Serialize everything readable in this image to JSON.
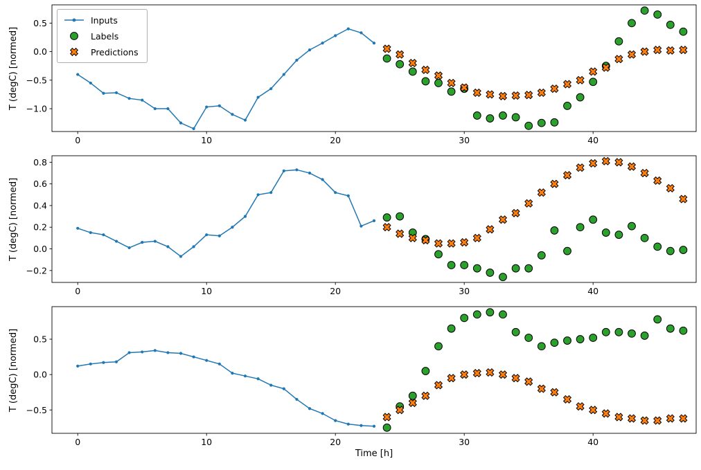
{
  "figure": {
    "background": "#ffffff",
    "xlabel": "Time [h]",
    "ylabel": "T (degC) [normed]"
  },
  "legend": {
    "position": "upper-left",
    "items": [
      {
        "label": "Inputs",
        "marker": "line-dot",
        "color": "#1f77b4"
      },
      {
        "label": "Labels",
        "marker": "circle",
        "color": "#2ca02c"
      },
      {
        "label": "Predictions",
        "marker": "x",
        "color": "#ff7f0e"
      }
    ]
  },
  "chart_data": [
    {
      "type": "line",
      "title": "",
      "xlabel": "",
      "ylabel": "T (degC) [normed]",
      "xlim": [
        -2,
        48
      ],
      "ylim": [
        -1.4,
        0.82
      ],
      "xticks": [
        0,
        10,
        20,
        30,
        40
      ],
      "yticks": [
        0.5,
        0.0,
        -0.5,
        -1.0
      ],
      "grid": false,
      "series": [
        {
          "name": "Inputs",
          "marker": "line-dot",
          "color": "#1f77b4",
          "x": [
            0,
            1,
            2,
            3,
            4,
            5,
            6,
            7,
            8,
            9,
            10,
            11,
            12,
            13,
            14,
            15,
            16,
            17,
            18,
            19,
            20,
            21,
            22,
            23
          ],
          "values": [
            -0.4,
            -0.55,
            -0.73,
            -0.72,
            -0.82,
            -0.85,
            -1.0,
            -1.0,
            -1.25,
            -1.35,
            -0.97,
            -0.95,
            -1.1,
            -1.2,
            -0.8,
            -0.65,
            -0.4,
            -0.15,
            0.03,
            0.15,
            0.28,
            0.4,
            0.33,
            0.15
          ]
        },
        {
          "name": "Labels",
          "marker": "circle",
          "color": "#2ca02c",
          "x": [
            24,
            25,
            26,
            27,
            28,
            29,
            30,
            31,
            32,
            33,
            34,
            35,
            36,
            37,
            38,
            39,
            40,
            41,
            42,
            43,
            44,
            45,
            46,
            47
          ],
          "values": [
            -0.12,
            -0.22,
            -0.35,
            -0.52,
            -0.55,
            -0.7,
            -0.65,
            -1.12,
            -1.17,
            -1.12,
            -1.15,
            -1.3,
            -1.25,
            -1.24,
            -0.95,
            -0.8,
            -0.53,
            -0.25,
            0.18,
            0.5,
            0.72,
            0.65,
            0.47,
            0.35
          ]
        },
        {
          "name": "Predictions",
          "marker": "x",
          "color": "#ff7f0e",
          "x": [
            24,
            25,
            26,
            27,
            28,
            29,
            30,
            31,
            32,
            33,
            34,
            35,
            36,
            37,
            38,
            39,
            40,
            41,
            42,
            43,
            44,
            45,
            46,
            47
          ],
          "values": [
            0.05,
            -0.05,
            -0.2,
            -0.32,
            -0.42,
            -0.55,
            -0.63,
            -0.72,
            -0.75,
            -0.78,
            -0.77,
            -0.76,
            -0.72,
            -0.65,
            -0.57,
            -0.5,
            -0.35,
            -0.28,
            -0.13,
            -0.05,
            0.0,
            0.03,
            0.02,
            0.03
          ]
        }
      ]
    },
    {
      "type": "line",
      "title": "",
      "xlabel": "",
      "ylabel": "T (degC) [normed]",
      "xlim": [
        -2,
        48
      ],
      "ylim": [
        -0.31,
        0.86
      ],
      "xticks": [
        0,
        10,
        20,
        30,
        40
      ],
      "yticks": [
        0.8,
        0.6,
        0.4,
        0.2,
        0.0,
        -0.2
      ],
      "grid": false,
      "series": [
        {
          "name": "Inputs",
          "marker": "line-dot",
          "color": "#1f77b4",
          "x": [
            0,
            1,
            2,
            3,
            4,
            5,
            6,
            7,
            8,
            9,
            10,
            11,
            12,
            13,
            14,
            15,
            16,
            17,
            18,
            19,
            20,
            21,
            22,
            23
          ],
          "values": [
            0.19,
            0.15,
            0.13,
            0.07,
            0.01,
            0.06,
            0.07,
            0.02,
            -0.07,
            0.02,
            0.13,
            0.12,
            0.2,
            0.3,
            0.5,
            0.52,
            0.72,
            0.73,
            0.7,
            0.64,
            0.52,
            0.49,
            0.21,
            0.26
          ]
        },
        {
          "name": "Labels",
          "marker": "circle",
          "color": "#2ca02c",
          "x": [
            24,
            25,
            26,
            27,
            28,
            29,
            30,
            31,
            32,
            33,
            34,
            35,
            36,
            37,
            38,
            39,
            40,
            41,
            42,
            43,
            44,
            45,
            46,
            47
          ],
          "values": [
            0.29,
            0.3,
            0.15,
            0.09,
            -0.05,
            -0.15,
            -0.15,
            -0.18,
            -0.22,
            -0.26,
            -0.18,
            -0.18,
            -0.06,
            0.17,
            -0.02,
            0.2,
            0.27,
            0.15,
            0.13,
            0.21,
            0.1,
            0.02,
            -0.02,
            -0.01
          ]
        },
        {
          "name": "Predictions",
          "marker": "x",
          "color": "#ff7f0e",
          "x": [
            24,
            25,
            26,
            27,
            28,
            29,
            30,
            31,
            32,
            33,
            34,
            35,
            36,
            37,
            38,
            39,
            40,
            41,
            42,
            43,
            44,
            45,
            46,
            47
          ],
          "values": [
            0.2,
            0.14,
            0.1,
            0.08,
            0.05,
            0.05,
            0.06,
            0.1,
            0.18,
            0.27,
            0.33,
            0.42,
            0.52,
            0.6,
            0.68,
            0.75,
            0.79,
            0.81,
            0.8,
            0.76,
            0.7,
            0.63,
            0.56,
            0.46
          ]
        }
      ]
    },
    {
      "type": "line",
      "title": "",
      "xlabel": "Time [h]",
      "ylabel": "T (degC) [normed]",
      "xlim": [
        -2,
        48
      ],
      "ylim": [
        -0.83,
        0.96
      ],
      "xticks": [
        0,
        10,
        20,
        30,
        40
      ],
      "yticks": [
        0.5,
        0.0,
        -0.5
      ],
      "grid": false,
      "series": [
        {
          "name": "Inputs",
          "marker": "line-dot",
          "color": "#1f77b4",
          "x": [
            0,
            1,
            2,
            3,
            4,
            5,
            6,
            7,
            8,
            9,
            10,
            11,
            12,
            13,
            14,
            15,
            16,
            17,
            18,
            19,
            20,
            21,
            22,
            23
          ],
          "values": [
            0.12,
            0.15,
            0.17,
            0.18,
            0.31,
            0.32,
            0.34,
            0.31,
            0.3,
            0.25,
            0.2,
            0.15,
            0.02,
            -0.02,
            -0.06,
            -0.15,
            -0.2,
            -0.35,
            -0.48,
            -0.55,
            -0.65,
            -0.7,
            -0.72,
            -0.73
          ]
        },
        {
          "name": "Labels",
          "marker": "circle",
          "color": "#2ca02c",
          "x": [
            24,
            25,
            26,
            27,
            28,
            29,
            30,
            31,
            32,
            33,
            34,
            35,
            36,
            37,
            38,
            39,
            40,
            41,
            42,
            43,
            44,
            45,
            46,
            47
          ],
          "values": [
            -0.75,
            -0.45,
            -0.3,
            0.05,
            0.4,
            0.65,
            0.8,
            0.85,
            0.88,
            0.85,
            0.6,
            0.52,
            0.4,
            0.45,
            0.48,
            0.5,
            0.52,
            0.6,
            0.6,
            0.58,
            0.55,
            0.78,
            0.65,
            0.62
          ]
        },
        {
          "name": "Predictions",
          "marker": "x",
          "color": "#ff7f0e",
          "x": [
            24,
            25,
            26,
            27,
            28,
            29,
            30,
            31,
            32,
            33,
            34,
            35,
            36,
            37,
            38,
            39,
            40,
            41,
            42,
            43,
            44,
            45,
            46,
            47
          ],
          "values": [
            -0.6,
            -0.5,
            -0.4,
            -0.3,
            -0.15,
            -0.05,
            0.0,
            0.02,
            0.03,
            0.0,
            -0.05,
            -0.1,
            -0.2,
            -0.25,
            -0.35,
            -0.45,
            -0.5,
            -0.55,
            -0.6,
            -0.62,
            -0.65,
            -0.65,
            -0.62,
            -0.62
          ]
        }
      ]
    }
  ]
}
